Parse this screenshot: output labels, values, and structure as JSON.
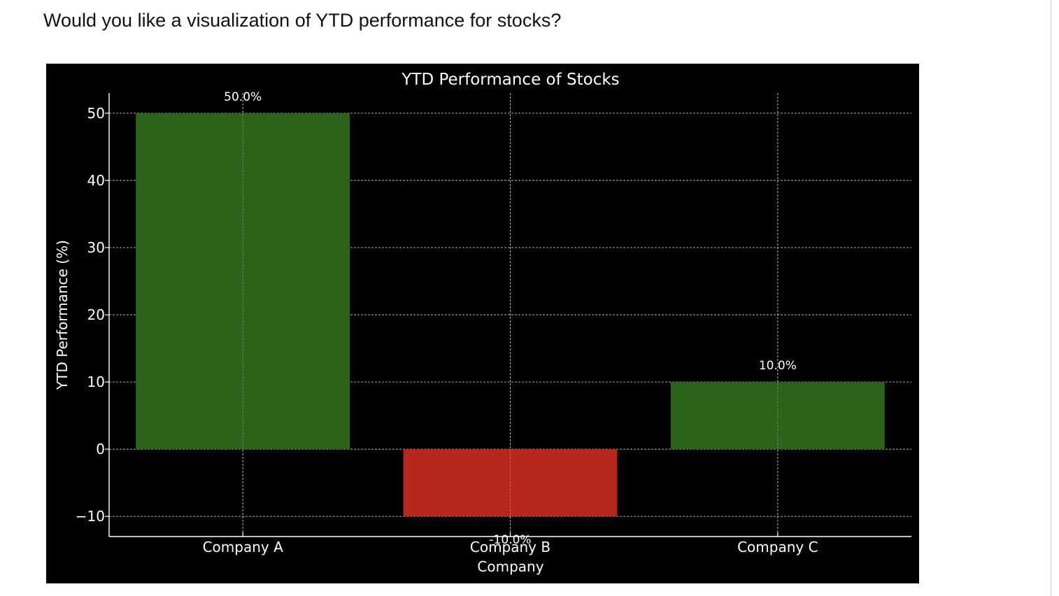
{
  "prompt": {
    "text": "Would you like a visualization of YTD performance for stocks?"
  },
  "chart_data": {
    "type": "bar",
    "title": "YTD Performance of Stocks",
    "xlabel": "Company",
    "ylabel": "YTD Performance (%)",
    "categories": [
      "Company A",
      "Company B",
      "Company C"
    ],
    "values": [
      50,
      -10,
      10
    ],
    "data_labels": [
      "50.0%",
      "-10.0%",
      "10.0%"
    ],
    "ylim": [
      -13,
      53
    ],
    "yticks": [
      -10,
      0,
      10,
      20,
      30,
      40,
      50
    ],
    "ytick_labels": [
      "−10",
      "0",
      "10",
      "20",
      "30",
      "40",
      "50"
    ],
    "grid": true,
    "background": "#000000",
    "positive_color": "#2c631b",
    "negative_color": "#b8271d"
  }
}
